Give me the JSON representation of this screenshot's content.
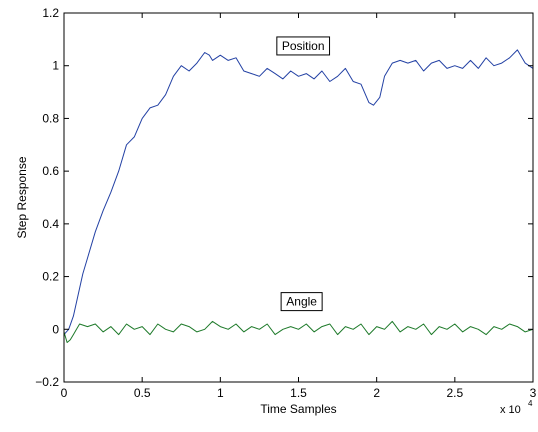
{
  "chart_data": {
    "type": "line",
    "title": "",
    "xlabel": "Time Samples",
    "ylabel": "Step Response",
    "x_exponent_label": "x 10",
    "x_exponent_power": "4",
    "xlim": [
      0,
      3
    ],
    "ylim": [
      -0.2,
      1.2
    ],
    "x_ticks": [
      0,
      0.5,
      1,
      1.5,
      2,
      2.5,
      3
    ],
    "x_tick_labels": [
      "0",
      "0.5",
      "1",
      "1.5",
      "2",
      "2.5",
      "3"
    ],
    "y_ticks": [
      -0.2,
      0,
      0.2,
      0.4,
      0.6,
      0.8,
      1,
      1.2
    ],
    "y_tick_labels": [
      "−0.2",
      "0",
      "0.2",
      "0.4",
      "0.6",
      "0.8",
      "1",
      "1.2"
    ],
    "grid": false,
    "annotations": [
      {
        "text": "Position",
        "x": 1.53,
        "y": 1.075
      },
      {
        "text": "Angle",
        "x": 1.52,
        "y": 0.105
      }
    ],
    "series": [
      {
        "color": "#2341a4",
        "x": [
          0.0,
          0.03,
          0.06,
          0.09,
          0.12,
          0.15,
          0.2,
          0.25,
          0.3,
          0.35,
          0.4,
          0.45,
          0.5,
          0.55,
          0.6,
          0.65,
          0.7,
          0.75,
          0.8,
          0.85,
          0.9,
          0.93,
          0.95,
          1.0,
          1.05,
          1.1,
          1.15,
          1.2,
          1.25,
          1.3,
          1.35,
          1.4,
          1.45,
          1.5,
          1.55,
          1.6,
          1.65,
          1.7,
          1.75,
          1.8,
          1.85,
          1.9,
          1.95,
          1.98,
          2.02,
          2.05,
          2.1,
          2.15,
          2.2,
          2.25,
          2.3,
          2.35,
          2.4,
          2.45,
          2.5,
          2.55,
          2.6,
          2.65,
          2.7,
          2.75,
          2.8,
          2.85,
          2.9,
          2.95,
          3.0
        ],
        "y": [
          -0.02,
          0.0,
          0.05,
          0.13,
          0.21,
          0.27,
          0.37,
          0.45,
          0.52,
          0.6,
          0.7,
          0.73,
          0.8,
          0.84,
          0.85,
          0.89,
          0.96,
          1.0,
          0.98,
          1.01,
          1.05,
          1.04,
          1.02,
          1.04,
          1.02,
          1.03,
          0.98,
          0.97,
          0.96,
          0.99,
          0.97,
          0.95,
          0.98,
          0.96,
          0.97,
          0.95,
          0.98,
          0.94,
          0.96,
          0.99,
          0.94,
          0.93,
          0.86,
          0.85,
          0.88,
          0.96,
          1.01,
          1.02,
          1.01,
          1.02,
          0.98,
          1.01,
          1.02,
          0.99,
          1.0,
          0.99,
          1.02,
          0.99,
          1.03,
          1.0,
          1.01,
          1.03,
          1.06,
          1.01,
          0.99
        ]
      },
      {
        "color": "#1e7a2a",
        "x": [
          0.0,
          0.02,
          0.04,
          0.06,
          0.08,
          0.1,
          0.15,
          0.2,
          0.25,
          0.3,
          0.35,
          0.4,
          0.45,
          0.5,
          0.55,
          0.6,
          0.65,
          0.7,
          0.75,
          0.8,
          0.85,
          0.9,
          0.95,
          1.0,
          1.05,
          1.1,
          1.15,
          1.2,
          1.25,
          1.3,
          1.35,
          1.4,
          1.45,
          1.5,
          1.55,
          1.6,
          1.65,
          1.7,
          1.75,
          1.8,
          1.85,
          1.9,
          1.95,
          2.0,
          2.05,
          2.1,
          2.15,
          2.2,
          2.25,
          2.3,
          2.35,
          2.4,
          2.45,
          2.5,
          2.55,
          2.6,
          2.65,
          2.7,
          2.75,
          2.8,
          2.85,
          2.9,
          2.95,
          3.0
        ],
        "y": [
          -0.01,
          -0.05,
          -0.04,
          -0.02,
          0.0,
          0.02,
          0.01,
          0.02,
          -0.01,
          0.01,
          -0.02,
          0.02,
          0.0,
          0.01,
          -0.02,
          0.02,
          0.0,
          -0.01,
          0.02,
          0.01,
          -0.01,
          0.0,
          0.03,
          0.01,
          0.0,
          0.02,
          -0.01,
          0.01,
          0.0,
          0.02,
          -0.02,
          0.0,
          0.01,
          0.0,
          0.02,
          -0.01,
          0.01,
          0.02,
          -0.02,
          0.01,
          0.0,
          0.02,
          -0.02,
          0.01,
          0.0,
          0.03,
          -0.01,
          0.01,
          0.0,
          0.02,
          -0.02,
          0.01,
          0.0,
          0.02,
          -0.01,
          0.01,
          0.0,
          -0.02,
          0.01,
          0.0,
          0.02,
          0.01,
          -0.01,
          0.0
        ]
      }
    ]
  }
}
